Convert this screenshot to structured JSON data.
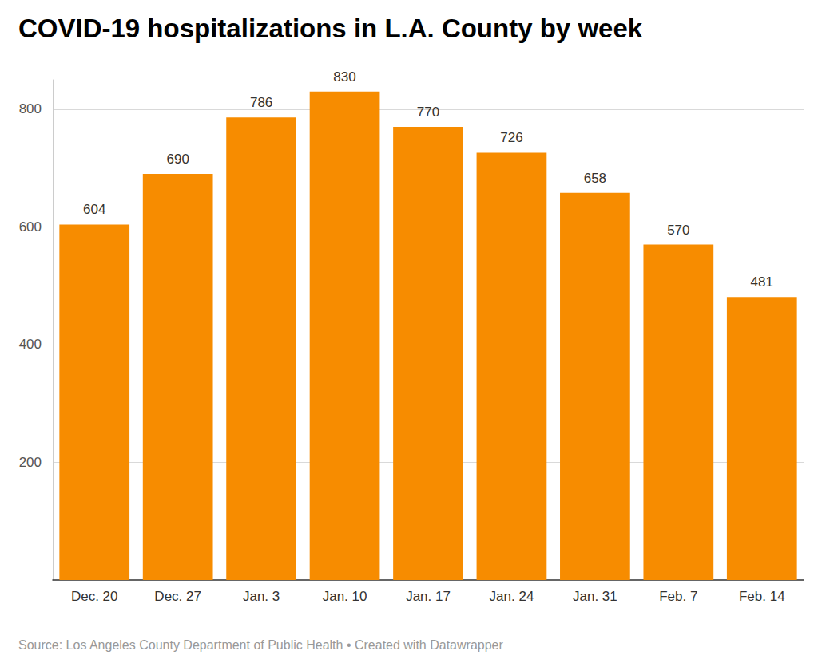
{
  "chart_data": {
    "type": "bar",
    "title": "COVID-19 hospitalizations in L.A. County by week",
    "source": "Source: Los Angeles County Department of Public Health • Created with Datawrapper",
    "categories": [
      "Dec. 20",
      "Dec. 27",
      "Jan. 3",
      "Jan. 10",
      "Jan. 17",
      "Jan. 24",
      "Jan. 31",
      "Feb. 7",
      "Feb. 14"
    ],
    "values": [
      604,
      690,
      786,
      830,
      770,
      726,
      658,
      570,
      481
    ],
    "color": "#f78c00",
    "ylim": [
      0,
      850
    ],
    "yticks": [
      200,
      400,
      600,
      800
    ],
    "grid": true,
    "data_labels": true
  }
}
